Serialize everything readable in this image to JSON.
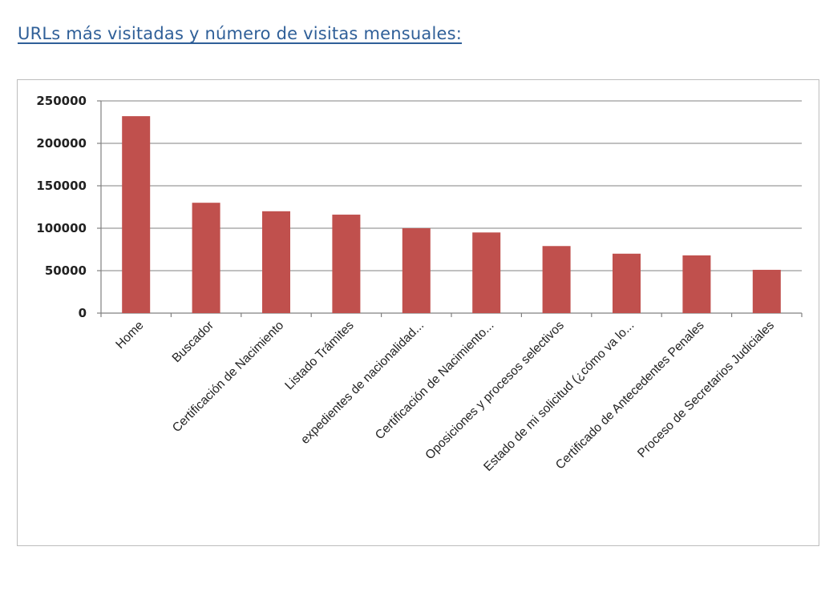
{
  "heading": "URLs más visitadas y número de visitas mensuales:",
  "chart_data": {
    "type": "bar",
    "title": "",
    "xlabel": "",
    "ylabel": "",
    "ylim": [
      0,
      250000
    ],
    "yticks": [
      "0",
      "50000",
      "100000",
      "150000",
      "200000",
      "250000"
    ],
    "grid": true,
    "legend": "none",
    "bar_color": "#c0504d",
    "categories": [
      "Home",
      "Buscador",
      "Certificación de Nacimiento",
      "Listado Trámites",
      "expedientes de nacionalidad...",
      "Certificación de Nacimiento...",
      "Oposiciones y procesos selectivos",
      "Estado de mi solicitud (¿cómo va lo...",
      "Certificado de Antecedentes Penales",
      "Proceso de Secretarios Judiciales"
    ],
    "values": [
      232000,
      130000,
      120000,
      116000,
      100000,
      95000,
      79000,
      70000,
      68000,
      51000
    ]
  }
}
